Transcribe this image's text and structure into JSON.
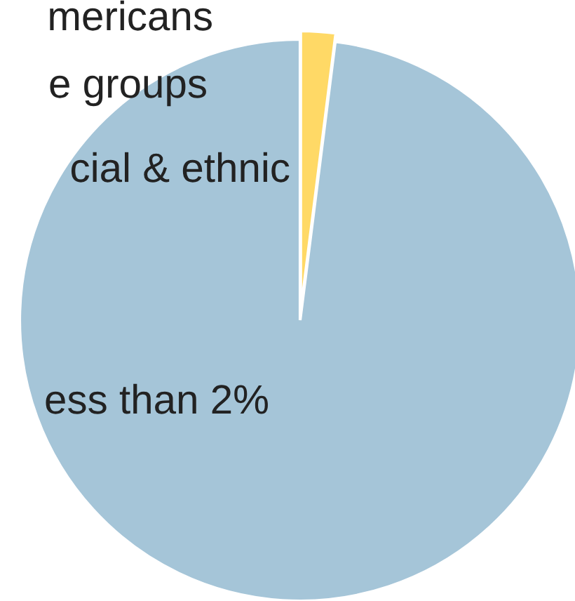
{
  "chart_data": {
    "type": "pie",
    "categories": [
      null,
      null
    ],
    "values": [
      2,
      98
    ],
    "colors": [
      "#ffd966",
      "#a5c5d8"
    ],
    "annotations": [
      "mericans",
      "e groups",
      "cial & ethnic",
      "ess than 2%"
    ]
  }
}
